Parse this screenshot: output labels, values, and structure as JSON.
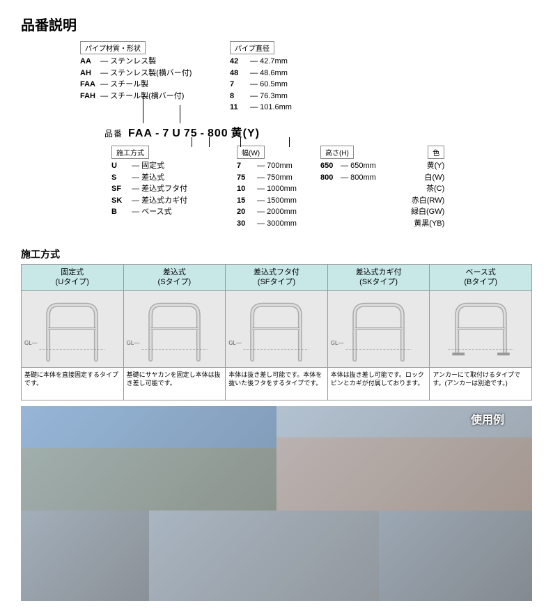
{
  "title": "品番説明",
  "productLine": {
    "label": "品番",
    "segments": [
      "FAA",
      "-",
      "7",
      "U",
      "75",
      "-",
      "800",
      " 黄(Y)"
    ]
  },
  "specs": {
    "material": {
      "label": "パイプ材質・形状",
      "items": [
        {
          "code": "AA",
          "text": "— ステンレス製"
        },
        {
          "code": "AH",
          "text": "— ステンレス製(横バー付)"
        },
        {
          "code": "FAA",
          "text": "— スチール製"
        },
        {
          "code": "FAH",
          "text": "— スチール製(横バー付)"
        }
      ]
    },
    "diameter": {
      "label": "パイプ直径",
      "items": [
        {
          "code": "42",
          "text": "— 42.7mm"
        },
        {
          "code": "48",
          "text": "— 48.6mm"
        },
        {
          "code": "7",
          "text": "— 60.5mm"
        },
        {
          "code": "8",
          "text": "— 76.3mm"
        },
        {
          "code": "11",
          "text": "— 101.6mm"
        }
      ]
    },
    "method": {
      "label": "施工方式",
      "items": [
        {
          "code": "U",
          "text": "— 固定式"
        },
        {
          "code": "S",
          "text": "— 差込式"
        },
        {
          "code": "SF",
          "text": "— 差込式フタ付"
        },
        {
          "code": "SK",
          "text": "— 差込式カギ付"
        },
        {
          "code": "B",
          "text": "— ベース式"
        }
      ]
    },
    "width": {
      "label": "幅(W)",
      "items": [
        {
          "code": "7",
          "text": "— 700mm"
        },
        {
          "code": "75",
          "text": "— 750mm"
        },
        {
          "code": "10",
          "text": "— 1000mm"
        },
        {
          "code": "15",
          "text": "— 1500mm"
        },
        {
          "code": "20",
          "text": "— 2000mm"
        },
        {
          "code": "30",
          "text": "— 3000mm"
        }
      ]
    },
    "height": {
      "label": "高さ(H)",
      "items": [
        {
          "code": "650",
          "text": "— 650mm"
        },
        {
          "code": "800",
          "text": "— 800mm"
        }
      ]
    },
    "color": {
      "label": "色",
      "items": [
        {
          "code": "",
          "text": "黄(Y)"
        },
        {
          "code": "",
          "text": "白(W)"
        },
        {
          "code": "",
          "text": "茶(C)"
        },
        {
          "code": "",
          "text": "赤白(RW)"
        },
        {
          "code": "",
          "text": "緑白(GW)"
        },
        {
          "code": "",
          "text": "黄黒(YB)"
        }
      ]
    }
  },
  "methodSection": {
    "title": "施工方式",
    "types": [
      {
        "header1": "固定式",
        "header2": "(Uタイプ)",
        "desc": "基礎に本体を直接固定するタイプです。",
        "gl": "GL"
      },
      {
        "header1": "差込式",
        "header2": "(Sタイプ)",
        "desc": "基礎にサヤカンを固定し本体は抜き差し可能です。",
        "gl": "GL"
      },
      {
        "header1": "差込式フタ付",
        "header2": "(SFタイプ)",
        "desc": "本体は抜き差し可能です。本体を抜いた後フタをするタイプです。",
        "gl": "GL"
      },
      {
        "header1": "差込式カギ付",
        "header2": "(SKタイプ)",
        "desc": "本体は抜き差し可能です。ロックピンとカギが付属しております。",
        "gl": "GL"
      },
      {
        "header1": "ベース式",
        "header2": "(Bタイプ)",
        "desc": "アンカーにて取付けるタイプです。(アンカーは別途です。)",
        "gl": ""
      }
    ]
  },
  "usageLabel": "使用例",
  "colors": {
    "headerBg": "#c8e8e8",
    "border": "#999999"
  }
}
